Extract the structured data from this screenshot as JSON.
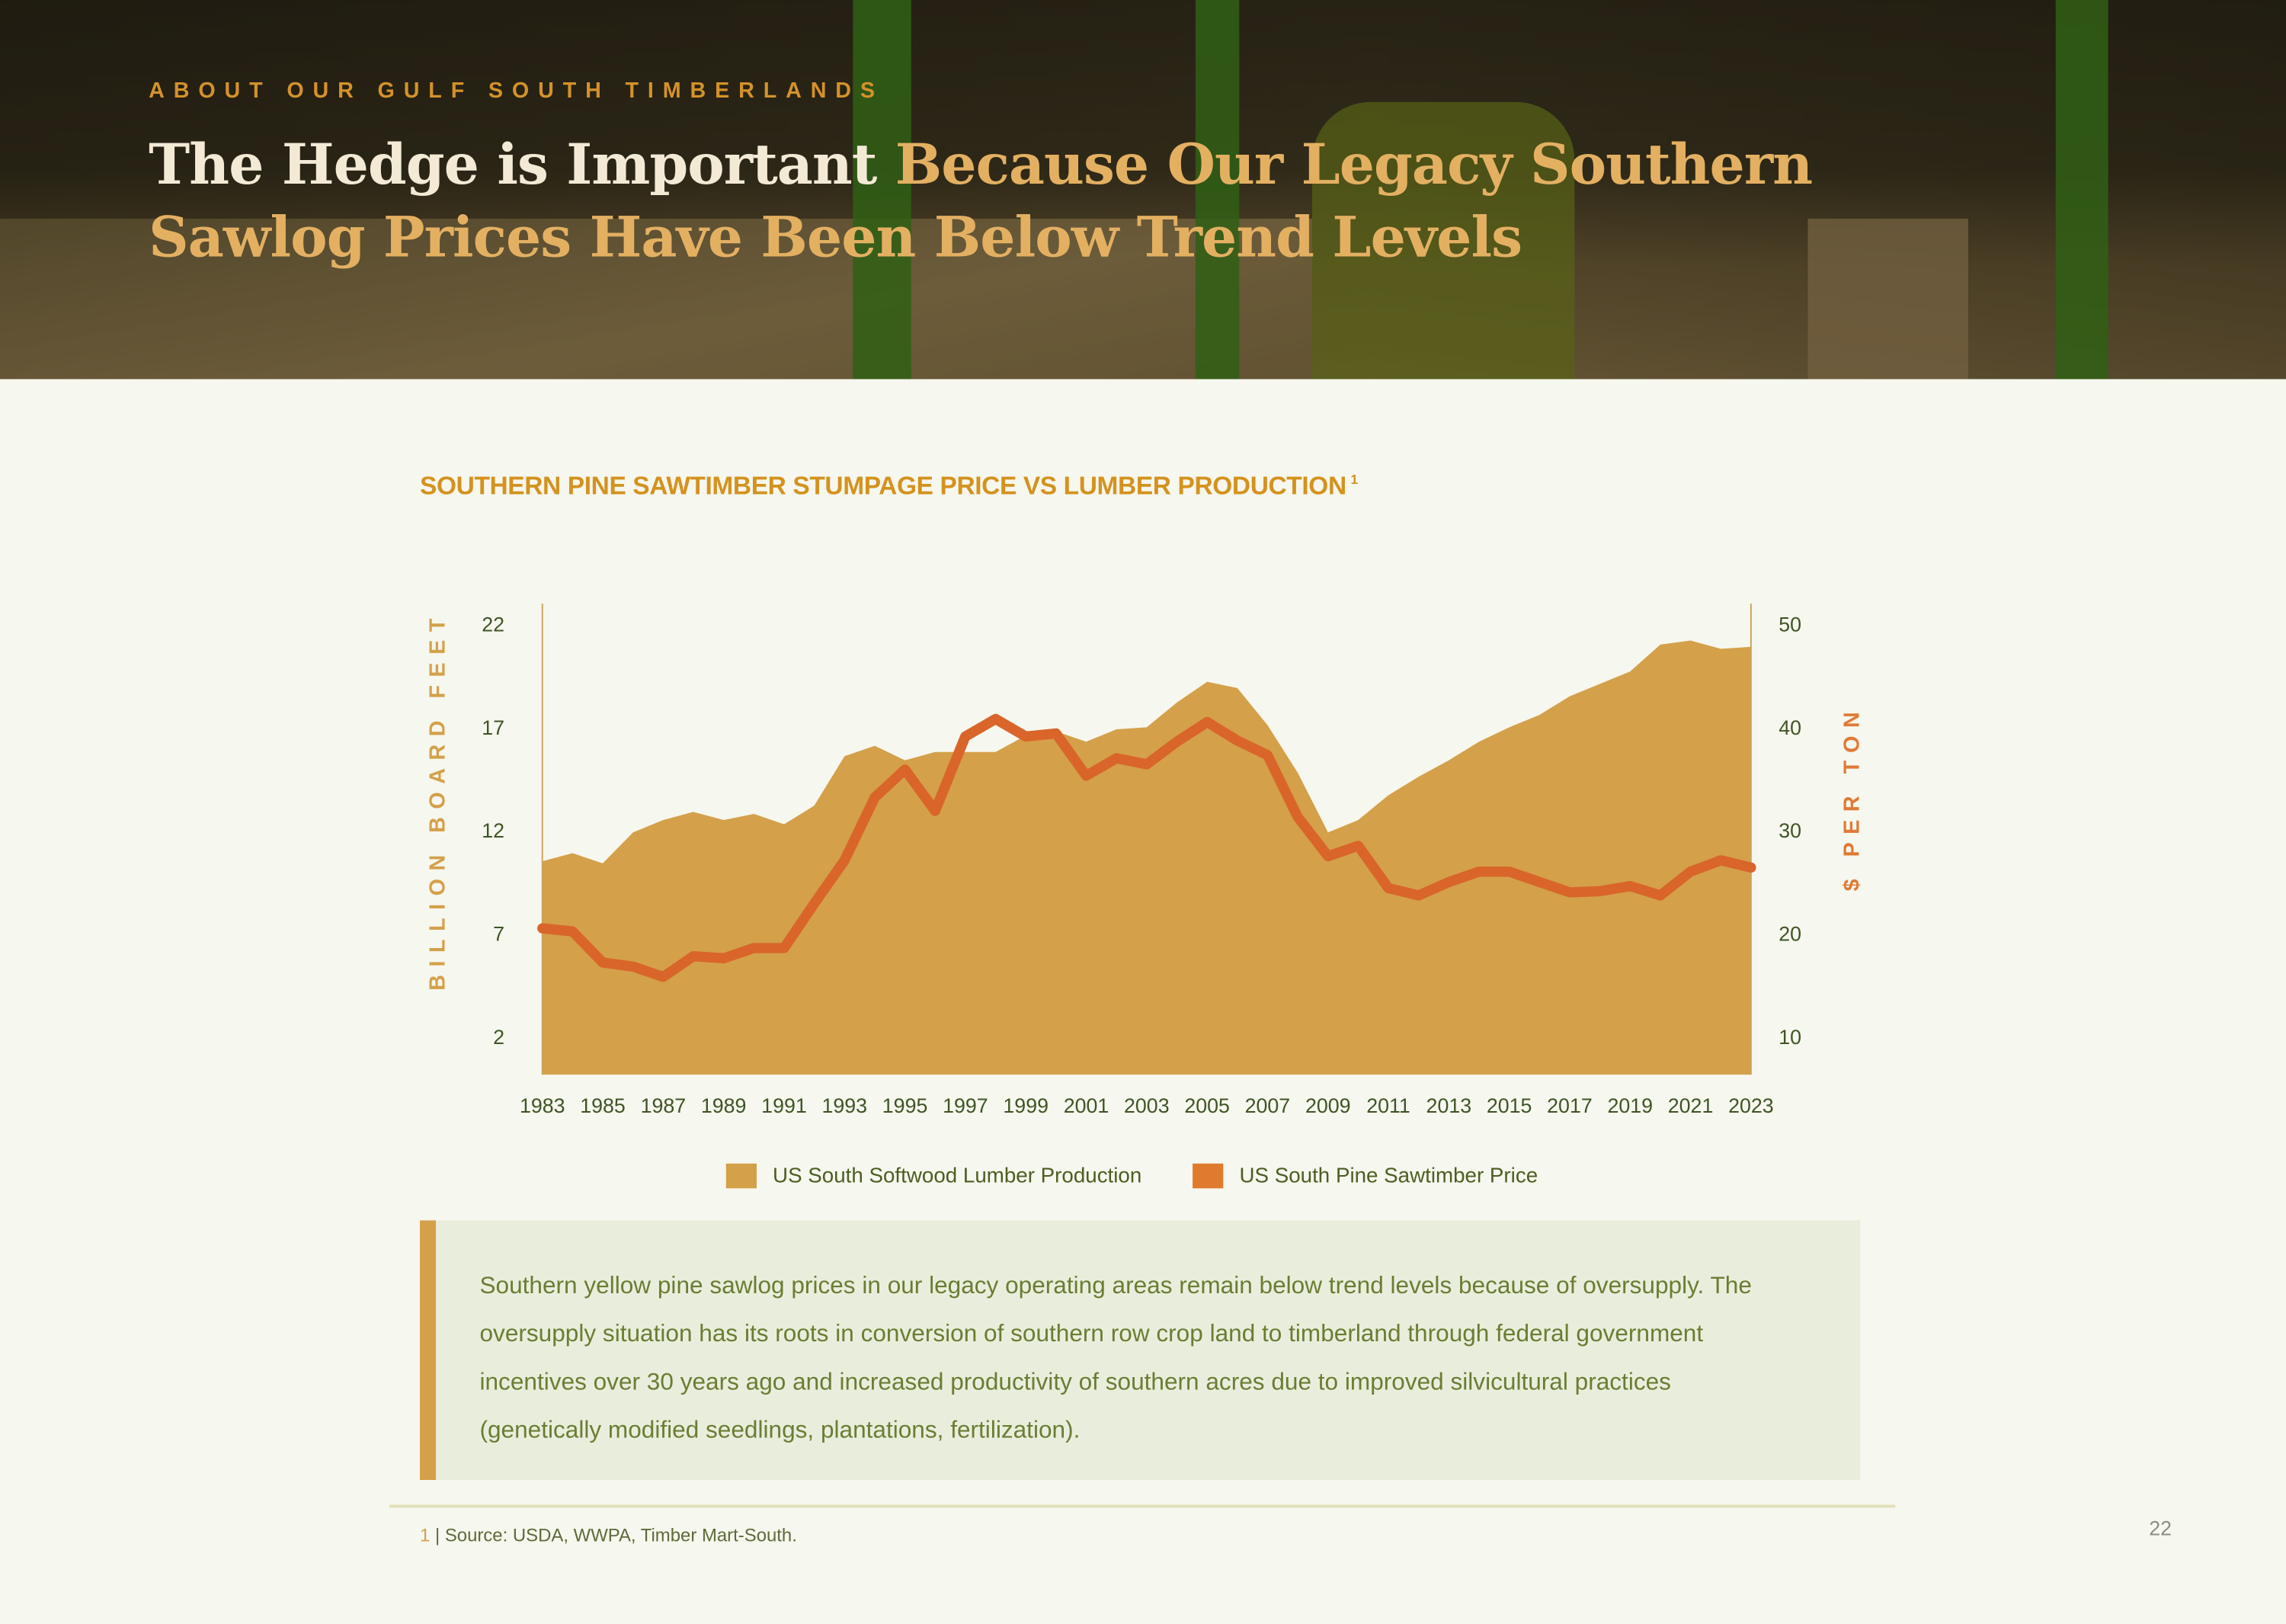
{
  "header": {
    "kicker": "ABOUT OUR GULF SOUTH TIMBERLANDS",
    "title_white": "The Hedge is Important ",
    "title_highlight": "Because Our Legacy Southern Sawlog Prices Have Been Below Trend Levels"
  },
  "chart_data": {
    "type": "area+line",
    "title": "SOUTHERN PINE SAWTIMBER STUMPAGE PRICE VS LUMBER PRODUCTION",
    "title_footnote": "1",
    "ylabel": "BILLION BOARD FEET",
    "y2label": "$ PER TON",
    "ylim": [
      0,
      22
    ],
    "y2lim": [
      6,
      50
    ],
    "yticks": [
      "22",
      "17",
      "12",
      "7",
      "2"
    ],
    "y2ticks": [
      "50",
      "40",
      "30",
      "20",
      "10"
    ],
    "xtick_labels": [
      "1983",
      "1985",
      "1987",
      "1989",
      "1991",
      "1993",
      "1995",
      "1997",
      "1999",
      "2001",
      "2003",
      "2005",
      "2007",
      "2009",
      "2011",
      "2013",
      "2015",
      "2017",
      "2019",
      "2021",
      "2023"
    ],
    "x": [
      1983,
      1984,
      1985,
      1986,
      1987,
      1988,
      1989,
      1990,
      1991,
      1992,
      1993,
      1994,
      1995,
      1996,
      1997,
      1998,
      1999,
      2000,
      2001,
      2002,
      2003,
      2004,
      2005,
      2006,
      2007,
      2008,
      2009,
      2010,
      2011,
      2012,
      2013,
      2014,
      2015,
      2016,
      2017,
      2018,
      2019,
      2020,
      2021,
      2022,
      2023
    ],
    "series": [
      {
        "name": "US South Softwood Lumber Production",
        "type": "area",
        "axis": "left",
        "color": "#d4a04a",
        "values": [
          10.5,
          10.9,
          10.4,
          11.9,
          12.5,
          12.9,
          12.5,
          12.8,
          12.3,
          13.2,
          15.6,
          16.1,
          15.4,
          15.8,
          15.8,
          15.8,
          16.6,
          16.8,
          16.3,
          16.9,
          17.0,
          18.2,
          19.2,
          18.9,
          17.1,
          14.8,
          11.9,
          12.5,
          13.7,
          14.6,
          15.4,
          16.3,
          17.0,
          17.6,
          18.5,
          19.1,
          19.7,
          21.0,
          21.2,
          20.8,
          20.9
        ]
      },
      {
        "name": "US South Pine Sawtimber Price",
        "type": "line",
        "axis": "right",
        "color": "#d9652a",
        "values": [
          20.5,
          20.2,
          17.2,
          16.8,
          15.8,
          17.8,
          17.6,
          18.6,
          18.6,
          22.9,
          27.1,
          33.2,
          35.9,
          31.9,
          39.1,
          40.8,
          39.1,
          39.4,
          35.3,
          37.0,
          36.4,
          38.6,
          40.5,
          38.7,
          37.3,
          31.3,
          27.5,
          28.5,
          24.4,
          23.7,
          25.0,
          26.0,
          26.0,
          25.0,
          24.0,
          24.1,
          24.6,
          23.7,
          26.0,
          27.1,
          26.4
        ]
      }
    ],
    "legend_colors": [
      "#d4a04a",
      "#e07a2e"
    ],
    "legend": "bottom"
  },
  "note": "Southern yellow pine sawlog prices in our legacy operating areas remain below trend levels because of oversupply. The oversupply situation has its roots in conversion of southern row crop land to timberland through federal government incentives over 30 years ago and increased productivity of southern acres due to improved silvicultural practices (genetically modified seedlings, plantations, fertilization).",
  "footnote": {
    "number": "1",
    "text": " | Source: USDA, WWPA, Timber Mart-South."
  },
  "page_number": "22"
}
